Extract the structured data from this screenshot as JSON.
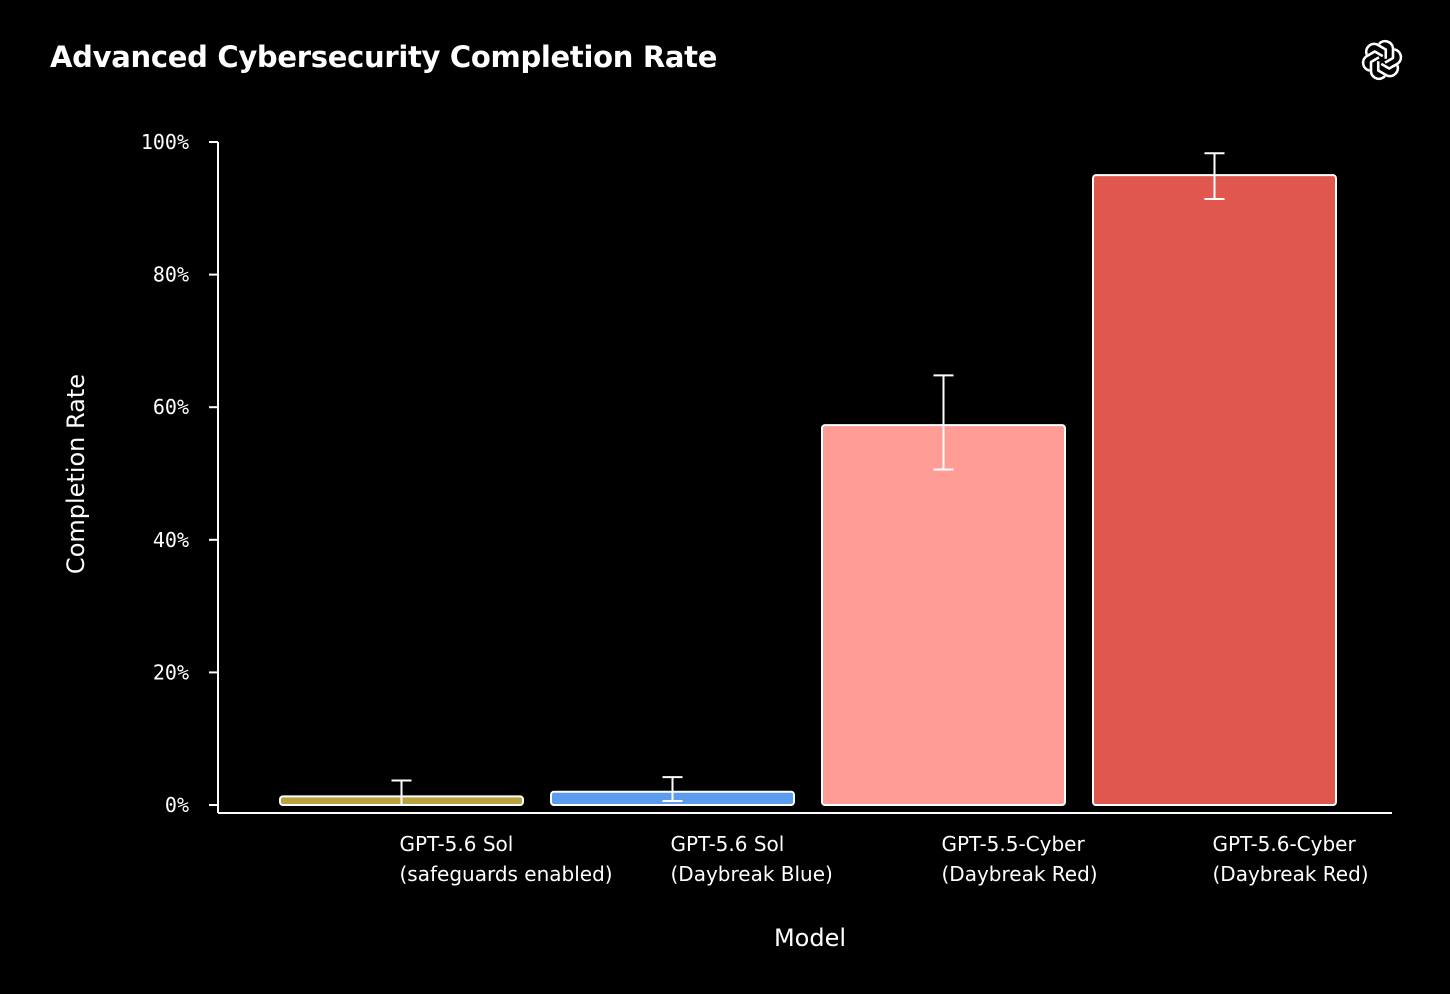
{
  "chart_data": {
    "type": "bar",
    "title": "Advanced Cybersecurity Completion Rate",
    "xlabel": "Model",
    "ylabel": "Completion Rate",
    "ylim": [
      0,
      100
    ],
    "yticks": [
      0,
      20,
      40,
      60,
      80,
      100
    ],
    "ytick_labels": [
      "0%",
      "20%",
      "40%",
      "60%",
      "80%",
      "100%"
    ],
    "categories": [
      [
        "GPT-5.6 Sol",
        "(safeguards enabled)"
      ],
      [
        "GPT-5.6 Sol",
        "(Daybreak Blue)"
      ],
      [
        "GPT-5.5-Cyber",
        "(Daybreak Red)"
      ],
      [
        "GPT-5.6-Cyber",
        "(Daybreak Red)"
      ]
    ],
    "values": [
      1.3,
      2.0,
      57.3,
      95.0
    ],
    "error_low": [
      0.0,
      0.6,
      50.6,
      91.4
    ],
    "error_high": [
      3.7,
      4.2,
      64.8,
      98.3
    ],
    "colors": [
      "#b8a23e",
      "#5b9ced",
      "#ff9c95",
      "#e0574e"
    ],
    "grid": false,
    "legend": "none"
  }
}
